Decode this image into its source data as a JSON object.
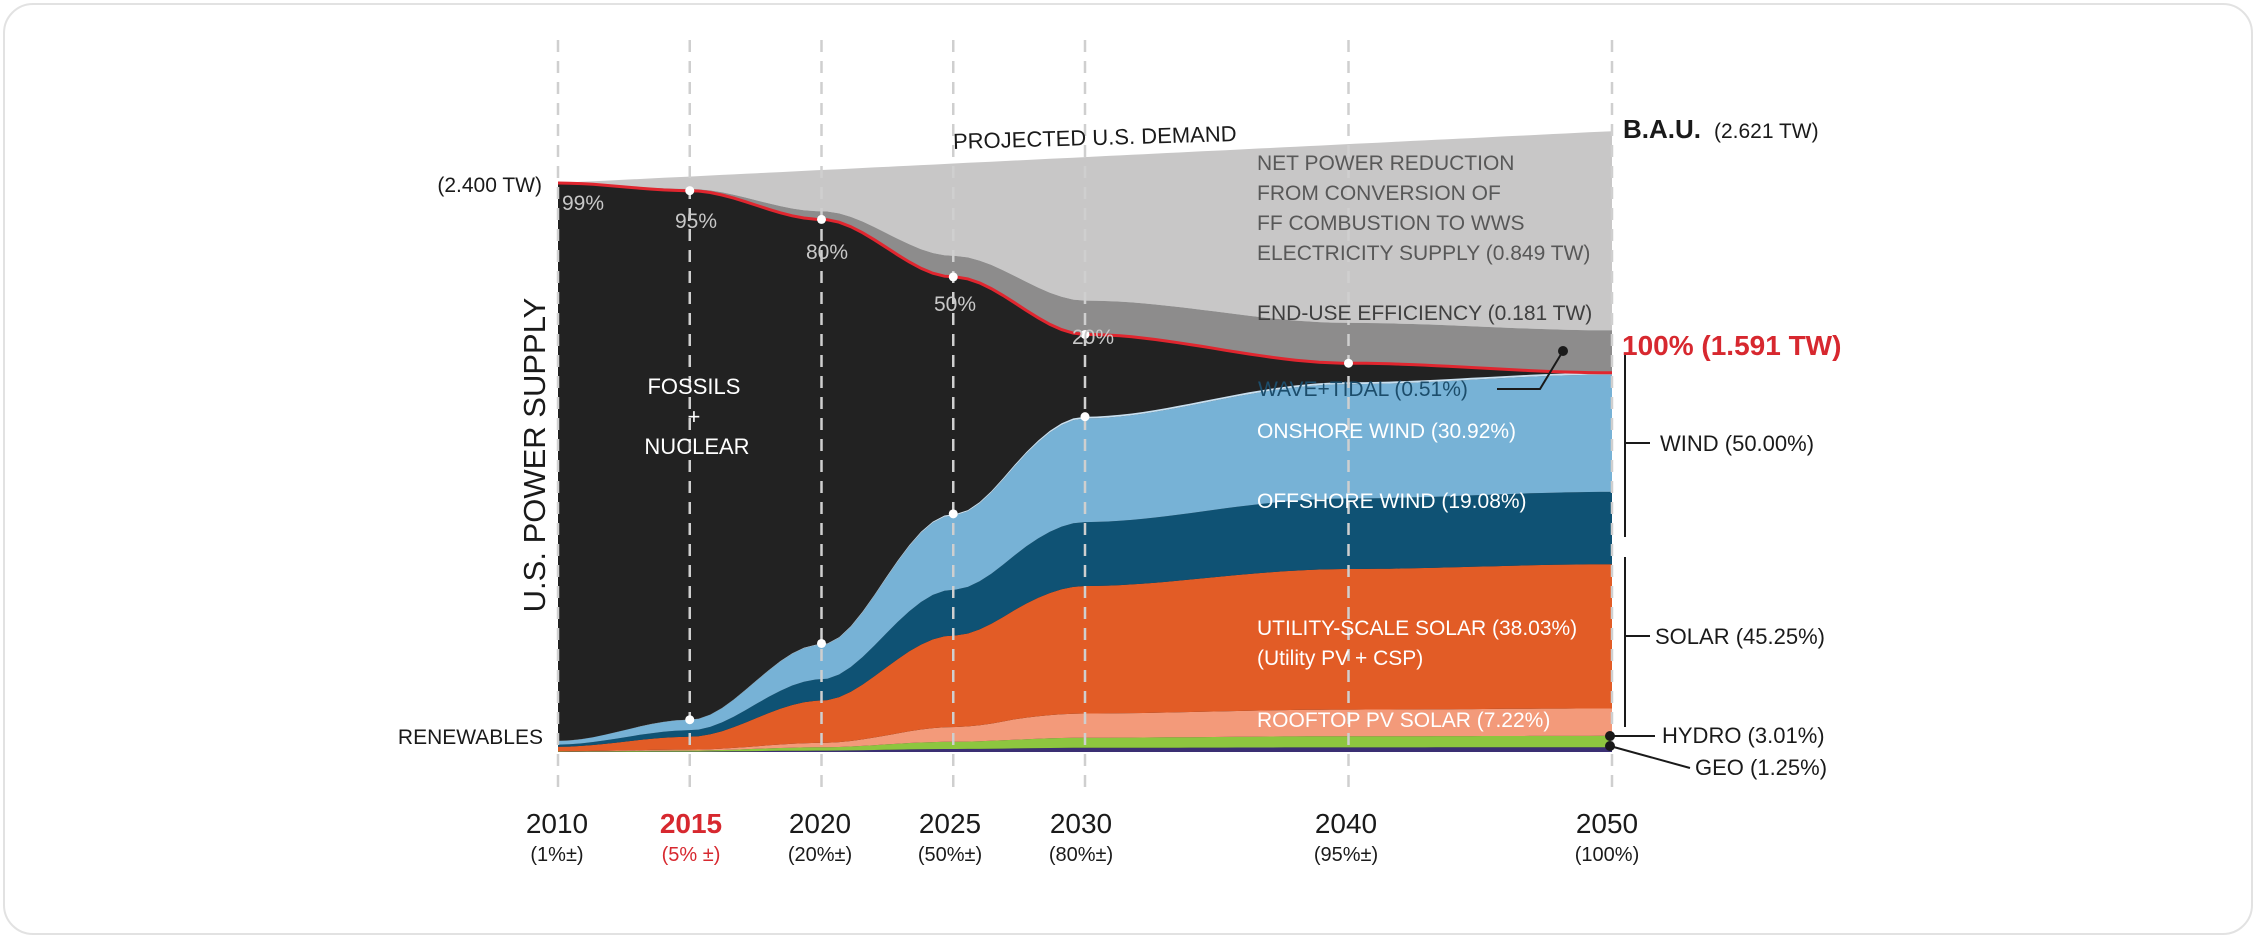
{
  "chart_data": {
    "type": "area",
    "title": "",
    "ylabel": "U.S. POWER SUPPLY",
    "x_years": [
      2010,
      2015,
      2020,
      2025,
      2030,
      2040,
      2050
    ],
    "x_sublabels": [
      "(1%±)",
      "(5% ±)",
      "(20%±)",
      "(50%±)",
      "(80%±)",
      "(95%±)",
      "(100%)"
    ],
    "highlight_year": 2015,
    "start_label": "(2.400 TW)",
    "renewables_label": "RENEWABLES",
    "fossil_label_lines": [
      "FOSSILS",
      "+",
      "NUCLEAR"
    ],
    "fossil_share_labels": [
      {
        "year": 2010,
        "label": "99%"
      },
      {
        "year": 2015,
        "label": "95%"
      },
      {
        "year": 2020,
        "label": "80%"
      },
      {
        "year": 2025,
        "label": "50%"
      },
      {
        "year": 2030,
        "label": "20%"
      }
    ],
    "demand": {
      "label": "PROJECTED U.S. DEMAND",
      "bau_bold": "B.A.U.",
      "bau_value": "(2.621 TW)",
      "start_tw": 2.4,
      "end_tw": 2.621
    },
    "reductions": [
      {
        "name": "net-power-reduction",
        "label_lines": [
          "NET POWER REDUCTION",
          "FROM CONVERSION OF",
          "FF COMBUSTION TO WWS",
          "ELECTRICITY SUPPLY (0.849 TW)"
        ],
        "value_tw": 0.849,
        "color": "#c8c7c7"
      },
      {
        "name": "end-use-efficiency",
        "label": "END-USE EFFICIENCY (0.181 TW)",
        "value_tw": 0.181,
        "color": "#8d8c8c"
      }
    ],
    "total_label": "100% (1.591 TW)",
    "total_tw": 1.591,
    "series": [
      {
        "name": "GEO",
        "label": "GEO (1.25%)",
        "share_2050": 1.25,
        "color": "#3a2f73"
      },
      {
        "name": "HYDRO",
        "label": "HYDRO (3.01%)",
        "share_2050": 3.01,
        "color": "#8dc63f"
      },
      {
        "name": "ROOFTOP PV SOLAR",
        "label": "ROOFTOP PV SOLAR (7.22%)",
        "share_2050": 7.22,
        "color": "#f39a7a"
      },
      {
        "name": "UTILITY-SCALE SOLAR",
        "label": "UTILITY-SCALE SOLAR (38.03%)",
        "sublabel": "(Utility PV + CSP)",
        "share_2050": 38.03,
        "color": "#e25c26"
      },
      {
        "name": "OFFSHORE WIND",
        "label": "OFFSHORE WIND (19.08%)",
        "share_2050": 19.08,
        "color": "#0f5274"
      },
      {
        "name": "ONSHORE WIND",
        "label": "ONSHORE WIND (30.92%)",
        "share_2050": 30.92,
        "color": "#77b2d6"
      },
      {
        "name": "WAVE+TIDAL",
        "label": "WAVE+TIDAL (0.51%)",
        "share_2050": 0.51,
        "color": "#c9e0f0"
      }
    ],
    "renewable_share_by_year": [
      1,
      5,
      20,
      50,
      80,
      95,
      100
    ],
    "groups": [
      {
        "label": "WIND (50.00%)",
        "share": 50.0
      },
      {
        "label": "SOLAR (45.25%)",
        "share": 45.25
      }
    ],
    "colors": {
      "fossil": "#222222",
      "demand_line": "#e0262f",
      "highlight": "#d7282f",
      "text": "#1a1a1a"
    }
  }
}
